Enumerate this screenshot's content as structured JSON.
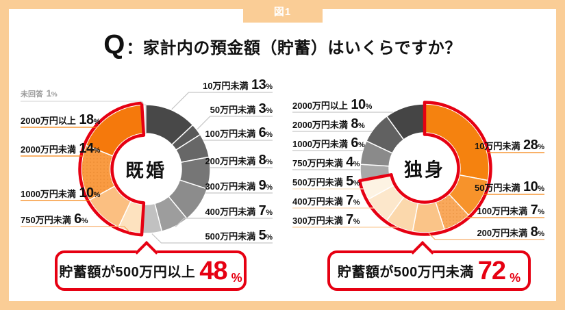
{
  "figure_tag": "図1",
  "title": {
    "q_mark": "Q",
    "text": "：家計内の預金額（貯蓄）はいくらですか？"
  },
  "colors": {
    "frame": "#FACD96",
    "accent_red": "#E60012",
    "text": "#111111",
    "muted": "#9B9B9B"
  },
  "chart_data": [
    {
      "type": "pie",
      "variant": "donut",
      "center_label": "既婚",
      "legend_position": "sides",
      "segments": [
        {
          "label": "10万円未満",
          "value": 13,
          "color": "#484848",
          "line": "#C8C8C8"
        },
        {
          "label": "50万円未満",
          "value": 3,
          "color": "#595959",
          "line": "#C8C8C8"
        },
        {
          "label": "100万円未満",
          "value": 6,
          "color": "#676767",
          "line": "#C8C8C8"
        },
        {
          "label": "200万円未満",
          "value": 8,
          "color": "#767676",
          "line": "#C8C8C8"
        },
        {
          "label": "300万円未満",
          "value": 9,
          "color": "#8C8C8C",
          "line": "#C8C8C8"
        },
        {
          "label": "400万円未満",
          "value": 7,
          "color": "#9D9D9D",
          "line": "#C8C8C8"
        },
        {
          "label": "500万円未満",
          "value": 5,
          "color": "#C1C1C1",
          "line": "#C8C8C8"
        },
        {
          "label": "750万円未満",
          "value": 6,
          "color": "#FDE2BF",
          "line": "#F8AE6B"
        },
        {
          "label": "1000万円未満",
          "value": 10,
          "color": "#FBBF81",
          "line": "#F5820F"
        },
        {
          "label": "2000万円未満",
          "value": 14,
          "color": "#F99B42",
          "line": "#F5820F",
          "dots": true
        },
        {
          "label": "2000万円以上",
          "value": 18,
          "color": "#F5790C",
          "line": "#F5820F"
        },
        {
          "label": "未回答",
          "value": 1,
          "color": "#FDFDFD",
          "line": "#D9D9D9",
          "muted": true
        }
      ],
      "highlight": {
        "start_index": 7,
        "end_index": 10,
        "summary": "貯蓄額が500万円以上",
        "pct": 48
      }
    },
    {
      "type": "pie",
      "variant": "donut",
      "center_label": "独身",
      "legend_position": "sides",
      "segments": [
        {
          "label": "10万円未満",
          "value": 28,
          "color": "#F5820F",
          "line": "#F5820F"
        },
        {
          "label": "50万円未満",
          "value": 10,
          "color": "#F7932B",
          "line": "#F5820F"
        },
        {
          "label": "100万円未満",
          "value": 7,
          "color": "#F9A85B",
          "line": "#F6922D",
          "dots": true
        },
        {
          "label": "200万円未満",
          "value": 8,
          "color": "#FAC488",
          "line": "#F8AE6B"
        },
        {
          "label": "300万円未満",
          "value": 7,
          "color": "#FBD8AC",
          "line": "#FBCFA0"
        },
        {
          "label": "400万円未満",
          "value": 7,
          "color": "#FCE7CB",
          "line": "#FBD8B0"
        },
        {
          "label": "500万円未満",
          "value": 5,
          "color": "#FDF3E3",
          "line": "#FCE3C4"
        },
        {
          "label": "750万円未満",
          "value": 4,
          "color": "#A8A8A8",
          "line": "#C8C8C8"
        },
        {
          "label": "1000万円未満",
          "value": 6,
          "color": "#8A8A8A",
          "line": "#C8C8C8"
        },
        {
          "label": "2000万円未満",
          "value": 8,
          "color": "#616161",
          "line": "#C8C8C8"
        },
        {
          "label": "2000万円以上",
          "value": 10,
          "color": "#454545",
          "line": "#C8C8C8"
        }
      ],
      "highlight": {
        "start_index": 0,
        "end_index": 6,
        "summary": "貯蓄額が500万円未満",
        "pct": 72
      }
    }
  ],
  "callouts": [
    {
      "text": "貯蓄額が500万円以上",
      "number": "48",
      "unit": "%"
    },
    {
      "text": "貯蓄額が500万円未満",
      "number": "72",
      "unit": "%"
    }
  ]
}
